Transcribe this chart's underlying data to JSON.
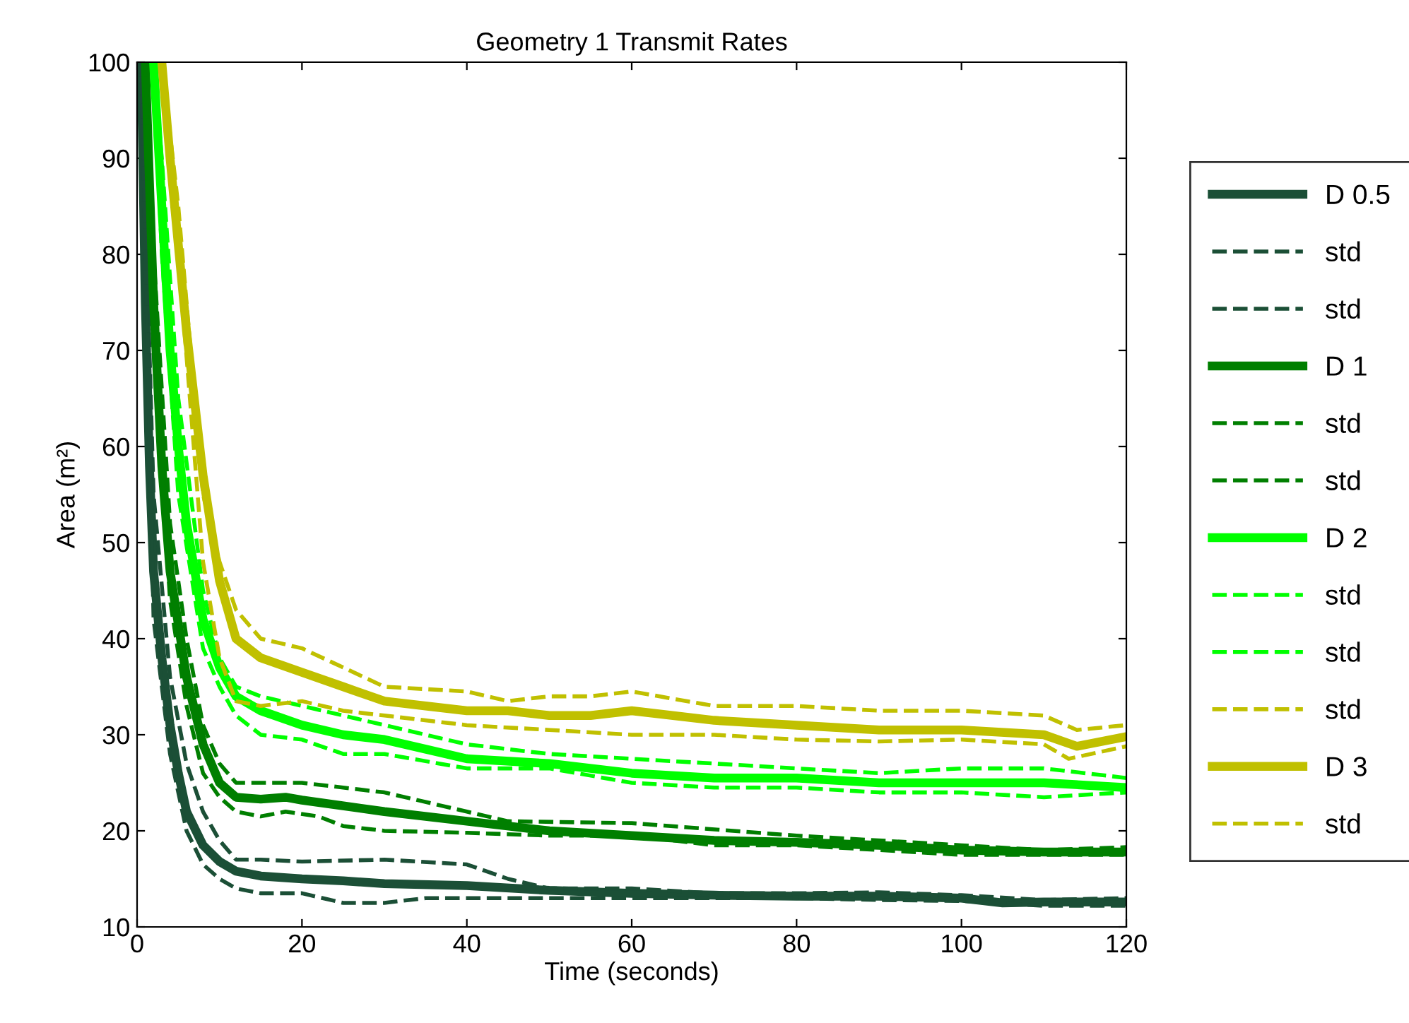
{
  "chart_data": {
    "type": "line",
    "title": "Geometry 1 Transmit Rates",
    "xlabel": "Time (seconds)",
    "ylabel": "Area (m²)",
    "xlim": [
      0,
      120
    ],
    "xticks": [
      0,
      20,
      40,
      60,
      80,
      100,
      120
    ],
    "ylim": [
      10,
      100
    ],
    "yticks": [
      10,
      20,
      30,
      40,
      50,
      60,
      70,
      80,
      90,
      100
    ],
    "grid": false,
    "legend": "right",
    "series": [
      {
        "name": "D 0.5",
        "color": "#1b4f36",
        "line_style": "solid",
        "x": [
          0.5,
          1,
          1.5,
          2,
          3,
          4,
          5,
          6,
          8,
          10,
          12,
          15,
          20,
          25,
          30,
          40,
          50,
          60,
          70,
          80,
          90,
          100,
          105,
          110,
          120
        ],
        "values": [
          100,
          75,
          58,
          47,
          38,
          31,
          26,
          22,
          18.5,
          16.8,
          15.8,
          15.3,
          15,
          14.8,
          14.5,
          14.3,
          13.8,
          13.5,
          13.3,
          13.2,
          13.2,
          13,
          12.5,
          12.6,
          12.6
        ]
      },
      {
        "name": "std",
        "color": "#1b4f36",
        "line_style": "dashed",
        "x": [
          0.5,
          2,
          4,
          6,
          8,
          10,
          12,
          15,
          20,
          30,
          40,
          45,
          50,
          60,
          70,
          80,
          90,
          100,
          110,
          120
        ],
        "values": [
          100,
          55,
          36,
          27,
          22,
          19,
          17,
          17,
          16.8,
          17,
          16.5,
          15,
          14,
          14,
          13.5,
          13.5,
          13.6,
          13.3,
          12.8,
          13
        ]
      },
      {
        "name": "std",
        "color": "#1b4f36",
        "line_style": "dashed",
        "x": [
          0.5,
          2,
          4,
          6,
          8,
          10,
          12,
          15,
          20,
          25,
          30,
          35,
          40,
          50,
          60,
          70,
          80,
          90,
          100,
          110,
          120
        ],
        "values": [
          100,
          42,
          28,
          20,
          16.5,
          15,
          14,
          13.5,
          13.5,
          12.5,
          12.5,
          13,
          13,
          13,
          13,
          13,
          13,
          12.8,
          12.7,
          12.2,
          12.2
        ]
      },
      {
        "name": "D 1",
        "color": "#007f00",
        "line_style": "solid",
        "x": [
          1,
          2,
          3,
          4,
          6,
          8,
          10,
          12,
          15,
          18,
          20,
          30,
          40,
          50,
          60,
          70,
          80,
          90,
          100,
          110,
          120
        ],
        "values": [
          100,
          75,
          58,
          47,
          36,
          29,
          25,
          23.5,
          23.3,
          23.5,
          23.2,
          22,
          21,
          20,
          19.5,
          19,
          18.8,
          18.5,
          18,
          17.8,
          17.8
        ]
      },
      {
        "name": "std",
        "color": "#007f00",
        "line_style": "dashed",
        "x": [
          1,
          2,
          4,
          6,
          8,
          10,
          12,
          20,
          30,
          40,
          45,
          60,
          80,
          100,
          110,
          120
        ],
        "values": [
          100,
          80,
          52,
          40,
          31,
          27,
          25,
          25,
          24,
          22,
          21,
          20.8,
          19.5,
          18.5,
          18,
          18.3
        ]
      },
      {
        "name": "std",
        "color": "#007f00",
        "line_style": "dashed",
        "x": [
          1,
          2,
          4,
          6,
          8,
          10,
          12,
          15,
          18,
          22,
          25,
          30,
          40,
          50,
          60,
          70,
          80,
          90,
          100,
          110,
          120
        ],
        "values": [
          100,
          70,
          44,
          33,
          26,
          23.5,
          22,
          21.5,
          22,
          21.5,
          20.5,
          20,
          19.8,
          19.5,
          19.5,
          18.5,
          18.5,
          18,
          17.5,
          17.5,
          17.5
        ]
      },
      {
        "name": "D 2",
        "color": "#00ff00",
        "line_style": "solid",
        "x": [
          2,
          3,
          4,
          5,
          6,
          8,
          10,
          12,
          15,
          20,
          25,
          30,
          35,
          40,
          50,
          60,
          70,
          80,
          90,
          100,
          110,
          120
        ],
        "values": [
          100,
          85,
          70,
          60,
          52,
          42,
          37,
          34,
          32.5,
          31,
          30,
          29.5,
          28.5,
          27.5,
          27,
          26,
          25.5,
          25.5,
          25,
          25,
          25,
          24.5
        ]
      },
      {
        "name": "std",
        "color": "#00ff00",
        "line_style": "dashed",
        "x": [
          2,
          3,
          5,
          8,
          10,
          12,
          15,
          20,
          30,
          40,
          50,
          60,
          70,
          80,
          90,
          100,
          110,
          120
        ],
        "values": [
          100,
          90,
          65,
          45,
          38,
          35,
          34,
          33,
          31,
          29,
          28,
          27.5,
          27,
          26.5,
          26,
          26.5,
          26.5,
          25.5
        ]
      },
      {
        "name": "std",
        "color": "#00ff00",
        "line_style": "dashed",
        "x": [
          2,
          3,
          5,
          8,
          10,
          12,
          15,
          20,
          25,
          30,
          40,
          50,
          60,
          70,
          80,
          90,
          100,
          110,
          120
        ],
        "values": [
          100,
          80,
          55,
          39,
          35,
          32,
          30,
          29.5,
          28,
          28,
          26.5,
          26.5,
          25,
          24.5,
          24.5,
          24,
          24,
          23.5,
          24
        ]
      },
      {
        "name": "std",
        "color": "#c0c000",
        "line_style": "dashed",
        "x": [
          3,
          5,
          8,
          10,
          12,
          15,
          20,
          25,
          30,
          40,
          50,
          60,
          70,
          80,
          90,
          100,
          110,
          113,
          120
        ],
        "values": [
          100,
          80,
          48,
          38,
          33.5,
          33,
          33.5,
          32.5,
          32,
          31,
          30.5,
          30,
          30,
          29.5,
          29.3,
          29.5,
          29,
          27.5,
          28.8
        ]
      },
      {
        "name": "D 3",
        "color": "#c0c000",
        "line_style": "solid",
        "x": [
          3,
          4,
          6,
          8,
          10,
          12,
          15,
          20,
          25,
          30,
          35,
          40,
          45,
          50,
          55,
          60,
          70,
          80,
          90,
          100,
          110,
          114,
          120
        ],
        "values": [
          100,
          90,
          72,
          57,
          46,
          40,
          38,
          36.5,
          35,
          33.5,
          33,
          32.5,
          32.5,
          32,
          32,
          32.5,
          31.5,
          31,
          30.5,
          30.5,
          30,
          28.8,
          29.8
        ]
      },
      {
        "name": "std",
        "color": "#c0c000",
        "line_style": "dashed",
        "x": [
          3,
          5,
          8,
          10,
          12,
          15,
          20,
          25,
          30,
          40,
          45,
          50,
          55,
          60,
          70,
          80,
          90,
          100,
          110,
          114,
          120
        ],
        "values": [
          100,
          85,
          55,
          48,
          43,
          40,
          39,
          37,
          35,
          34.5,
          33.5,
          34,
          34,
          34.5,
          33,
          33,
          32.5,
          32.5,
          32,
          30.5,
          31
        ]
      }
    ]
  }
}
